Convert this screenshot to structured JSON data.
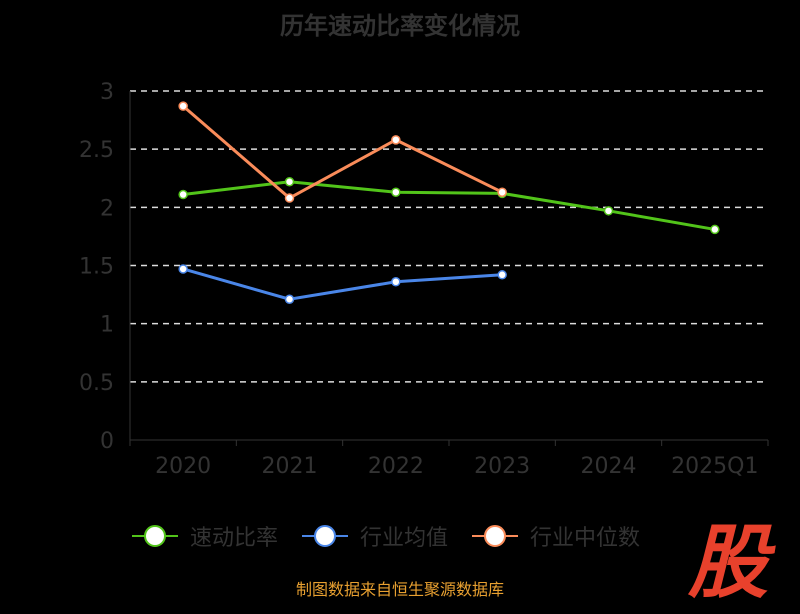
{
  "chart_data": {
    "type": "line",
    "title": "历年速动比率变化情况",
    "categories": [
      "2020",
      "2021",
      "2022",
      "2023",
      "2024",
      "2025Q1"
    ],
    "ylim": [
      0,
      3
    ],
    "yticks": [
      "0",
      "0.5",
      "1",
      "1.5",
      "2",
      "2.5",
      "3"
    ],
    "grid": true,
    "legend_position": "bottom",
    "series": [
      {
        "name": "速动比率",
        "color": "#52c41a",
        "values": [
          2.11,
          2.22,
          2.13,
          2.12,
          1.97,
          1.81
        ]
      },
      {
        "name": "行业均值",
        "color": "#4a86e8",
        "values": [
          1.47,
          1.21,
          1.36,
          1.42,
          null,
          null
        ]
      },
      {
        "name": "行业中位数",
        "color": "#fa8c5a",
        "values": [
          2.87,
          2.08,
          2.58,
          2.13,
          null,
          null
        ]
      }
    ]
  },
  "source": "制图数据来自恒生聚源数据库",
  "logo": "股"
}
